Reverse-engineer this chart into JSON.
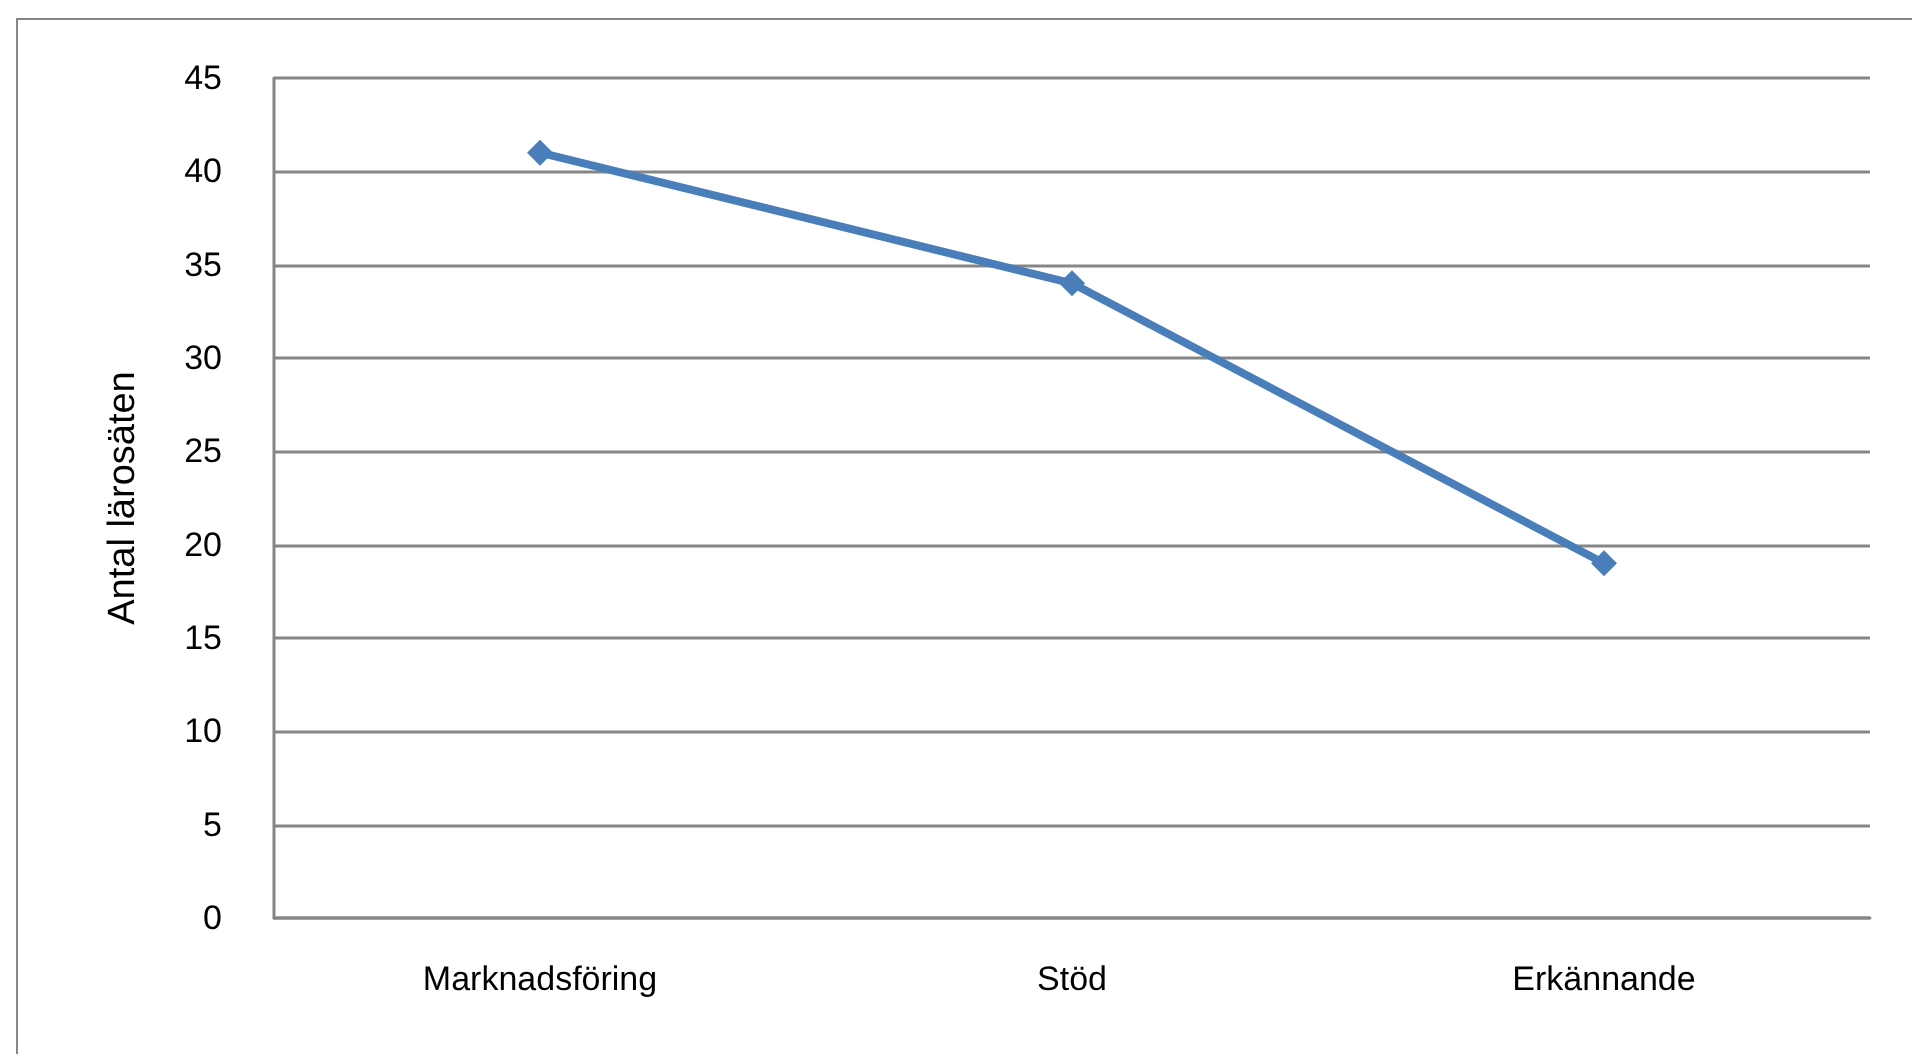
{
  "chart_data": {
    "type": "line",
    "ylabel": "Antal lärosäten",
    "categories": [
      "Marknadsföring",
      "Stöd",
      "Erkännande"
    ],
    "values": [
      41,
      34,
      19
    ],
    "color": "#4a7ebb",
    "ylim": [
      0,
      45
    ],
    "yticks": [
      0,
      5,
      10,
      15,
      20,
      25,
      30,
      35,
      40,
      45
    ],
    "grid": "y",
    "marker": "diamond",
    "line_style": "solid"
  }
}
